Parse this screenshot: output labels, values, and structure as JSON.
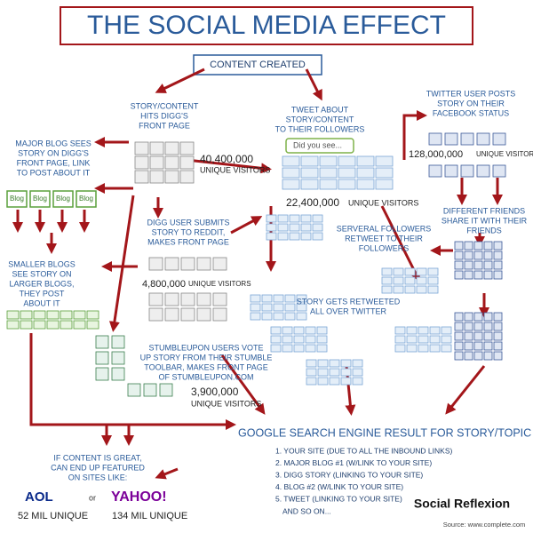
{
  "title": "THE SOCIAL MEDIA EFFECT",
  "content_created": "CONTENT CREATED",
  "digg": {
    "lines": [
      "STORY/CONTENT",
      "HITS DIGG'S",
      "FRONT PAGE"
    ],
    "visitors": "40,400,000",
    "visitors_label": "UNIQUE VISITORS"
  },
  "tweet": {
    "lines": [
      "TWEET ABOUT",
      "STORY/CONTENT",
      "TO THEIR FOLLOWERS"
    ],
    "box": "Did you see...",
    "visitors": "22,400,000",
    "visitors_label": "UNIQUE VISITORS"
  },
  "facebook": {
    "lines": [
      "TWITTER USER POSTS",
      "STORY ON THEIR",
      "FACEBOOK STATUS"
    ],
    "visitors": "128,000,000",
    "visitors_label": "UNIQUE VISITORS"
  },
  "major_blog": {
    "lines": [
      "MAJOR BLOG SEES",
      "STORY ON DIGG'S",
      "FRONT PAGE, LINK",
      "TO POST ABOUT IT"
    ],
    "icons": [
      "Blog",
      "Blog",
      "Blog",
      "Blog"
    ]
  },
  "friends": {
    "lines": [
      "DIFFERENT FRIENDS",
      "SHARE IT WITH THEIR",
      "FRIENDS"
    ]
  },
  "reddit": {
    "lines": [
      "DIGG USER SUBMITS",
      "STORY TO REDDIT,",
      "MAKES FRONT PAGE"
    ],
    "visitors": "4,800,000",
    "visitors_label": "UNIQUE VISITORS"
  },
  "retweet": {
    "lines": [
      "SERVERAL FOLLOWERS",
      "RETWEET TO THEIR",
      "FOLLOWERS"
    ]
  },
  "smaller_blogs": {
    "lines": [
      "SMALLER BLOGS",
      "SEE STORY ON",
      "LARGER BLOGS,",
      "THEY POST",
      "ABOUT IT"
    ]
  },
  "all_over": {
    "lines": [
      "STORY GETS RETWEETED",
      "ALL OVER TWITTER"
    ]
  },
  "stumbleupon": {
    "lines": [
      "STUMBLEUPON USERS VOTE",
      "UP STORY FROM THEIR STUMBLE",
      "TOOLBAR, MAKES FRONT PAGE",
      "OF STUMBLEUPON.COM"
    ],
    "visitors": "3,900,000",
    "visitors_label": "UNIQUE VISITORS"
  },
  "google": {
    "title": "GOOGLE SEARCH ENGINE RESULT FOR STORY/TOPIC",
    "items": [
      "1. YOUR SITE (DUE TO ALL THE INBOUND LINKS)",
      "2. MAJOR BLOG #1 (W/LINK TO YOUR SITE)",
      "3. DIGG STORY (LINKING TO YOUR SITE)",
      "4. BLOG #2 (W/LINK TO YOUR SITE)",
      "5. TWEET (LINKING TO YOUR SITE)"
    ],
    "more": "AND SO ON..."
  },
  "featured": {
    "lines": [
      "IF CONTENT IS GREAT,",
      "CAN END UP FEATURED",
      "ON SITES LIKE:"
    ],
    "aol": "AOL",
    "or": "or",
    "yahoo": "YAHOO!",
    "aol_unique": "52 MIL UNIQUE",
    "yahoo_unique": "134 MIL UNIQUE"
  },
  "brand": "Social Reflexion",
  "source": "Source: www.complete.com"
}
